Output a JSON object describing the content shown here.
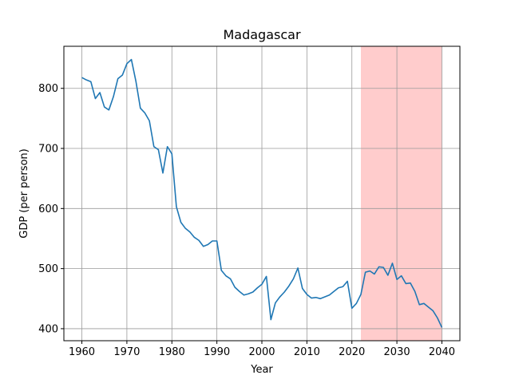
{
  "chart_data": {
    "type": "line",
    "title": "Madagascar",
    "xlabel": "Year",
    "ylabel": "GDP (per person)",
    "xlim": [
      1956,
      2044
    ],
    "ylim": [
      380,
      870
    ],
    "xticks": [
      1960,
      1970,
      1980,
      1990,
      2000,
      2010,
      2020,
      2030,
      2040
    ],
    "yticks": [
      400,
      500,
      600,
      700,
      800
    ],
    "grid": true,
    "highlight": {
      "x_start": 2022,
      "x_end": 2040,
      "color": "#ffcccc"
    },
    "series": [
      {
        "color": "#1f77b4",
        "x": [
          1960,
          1961,
          1962,
          1963,
          1964,
          1965,
          1966,
          1967,
          1968,
          1969,
          1970,
          1971,
          1972,
          1973,
          1974,
          1975,
          1976,
          1977,
          1978,
          1979,
          1980,
          1981,
          1982,
          1983,
          1984,
          1985,
          1986,
          1987,
          1988,
          1989,
          1990,
          1991,
          1992,
          1993,
          1994,
          1995,
          1996,
          1997,
          1998,
          1999,
          2000,
          2001,
          2002,
          2003,
          2004,
          2005,
          2006,
          2007,
          2008,
          2009,
          2010,
          2011,
          2012,
          2013,
          2014,
          2015,
          2016,
          2017,
          2018,
          2019,
          2020,
          2021,
          2022,
          2023,
          2024,
          2025,
          2026,
          2027,
          2028,
          2029,
          2030,
          2031,
          2032,
          2033,
          2034,
          2035,
          2036,
          2037,
          2038,
          2039,
          2040
        ],
        "values": [
          818,
          814,
          811,
          783,
          793,
          769,
          764,
          786,
          816,
          822,
          841,
          848,
          812,
          767,
          759,
          746,
          703,
          698,
          659,
          703,
          691,
          603,
          577,
          567,
          561,
          552,
          547,
          537,
          540,
          546,
          546,
          497,
          488,
          483,
          469,
          462,
          456,
          458,
          461,
          468,
          474,
          487,
          415,
          443,
          453,
          461,
          471,
          483,
          501,
          467,
          457,
          451,
          452,
          450,
          453,
          456,
          462,
          468,
          470,
          479,
          434,
          442,
          457,
          494,
          496,
          491,
          503,
          502,
          489,
          509,
          482,
          488,
          475,
          476,
          462,
          440,
          442,
          436,
          430,
          418,
          402
        ]
      }
    ]
  }
}
